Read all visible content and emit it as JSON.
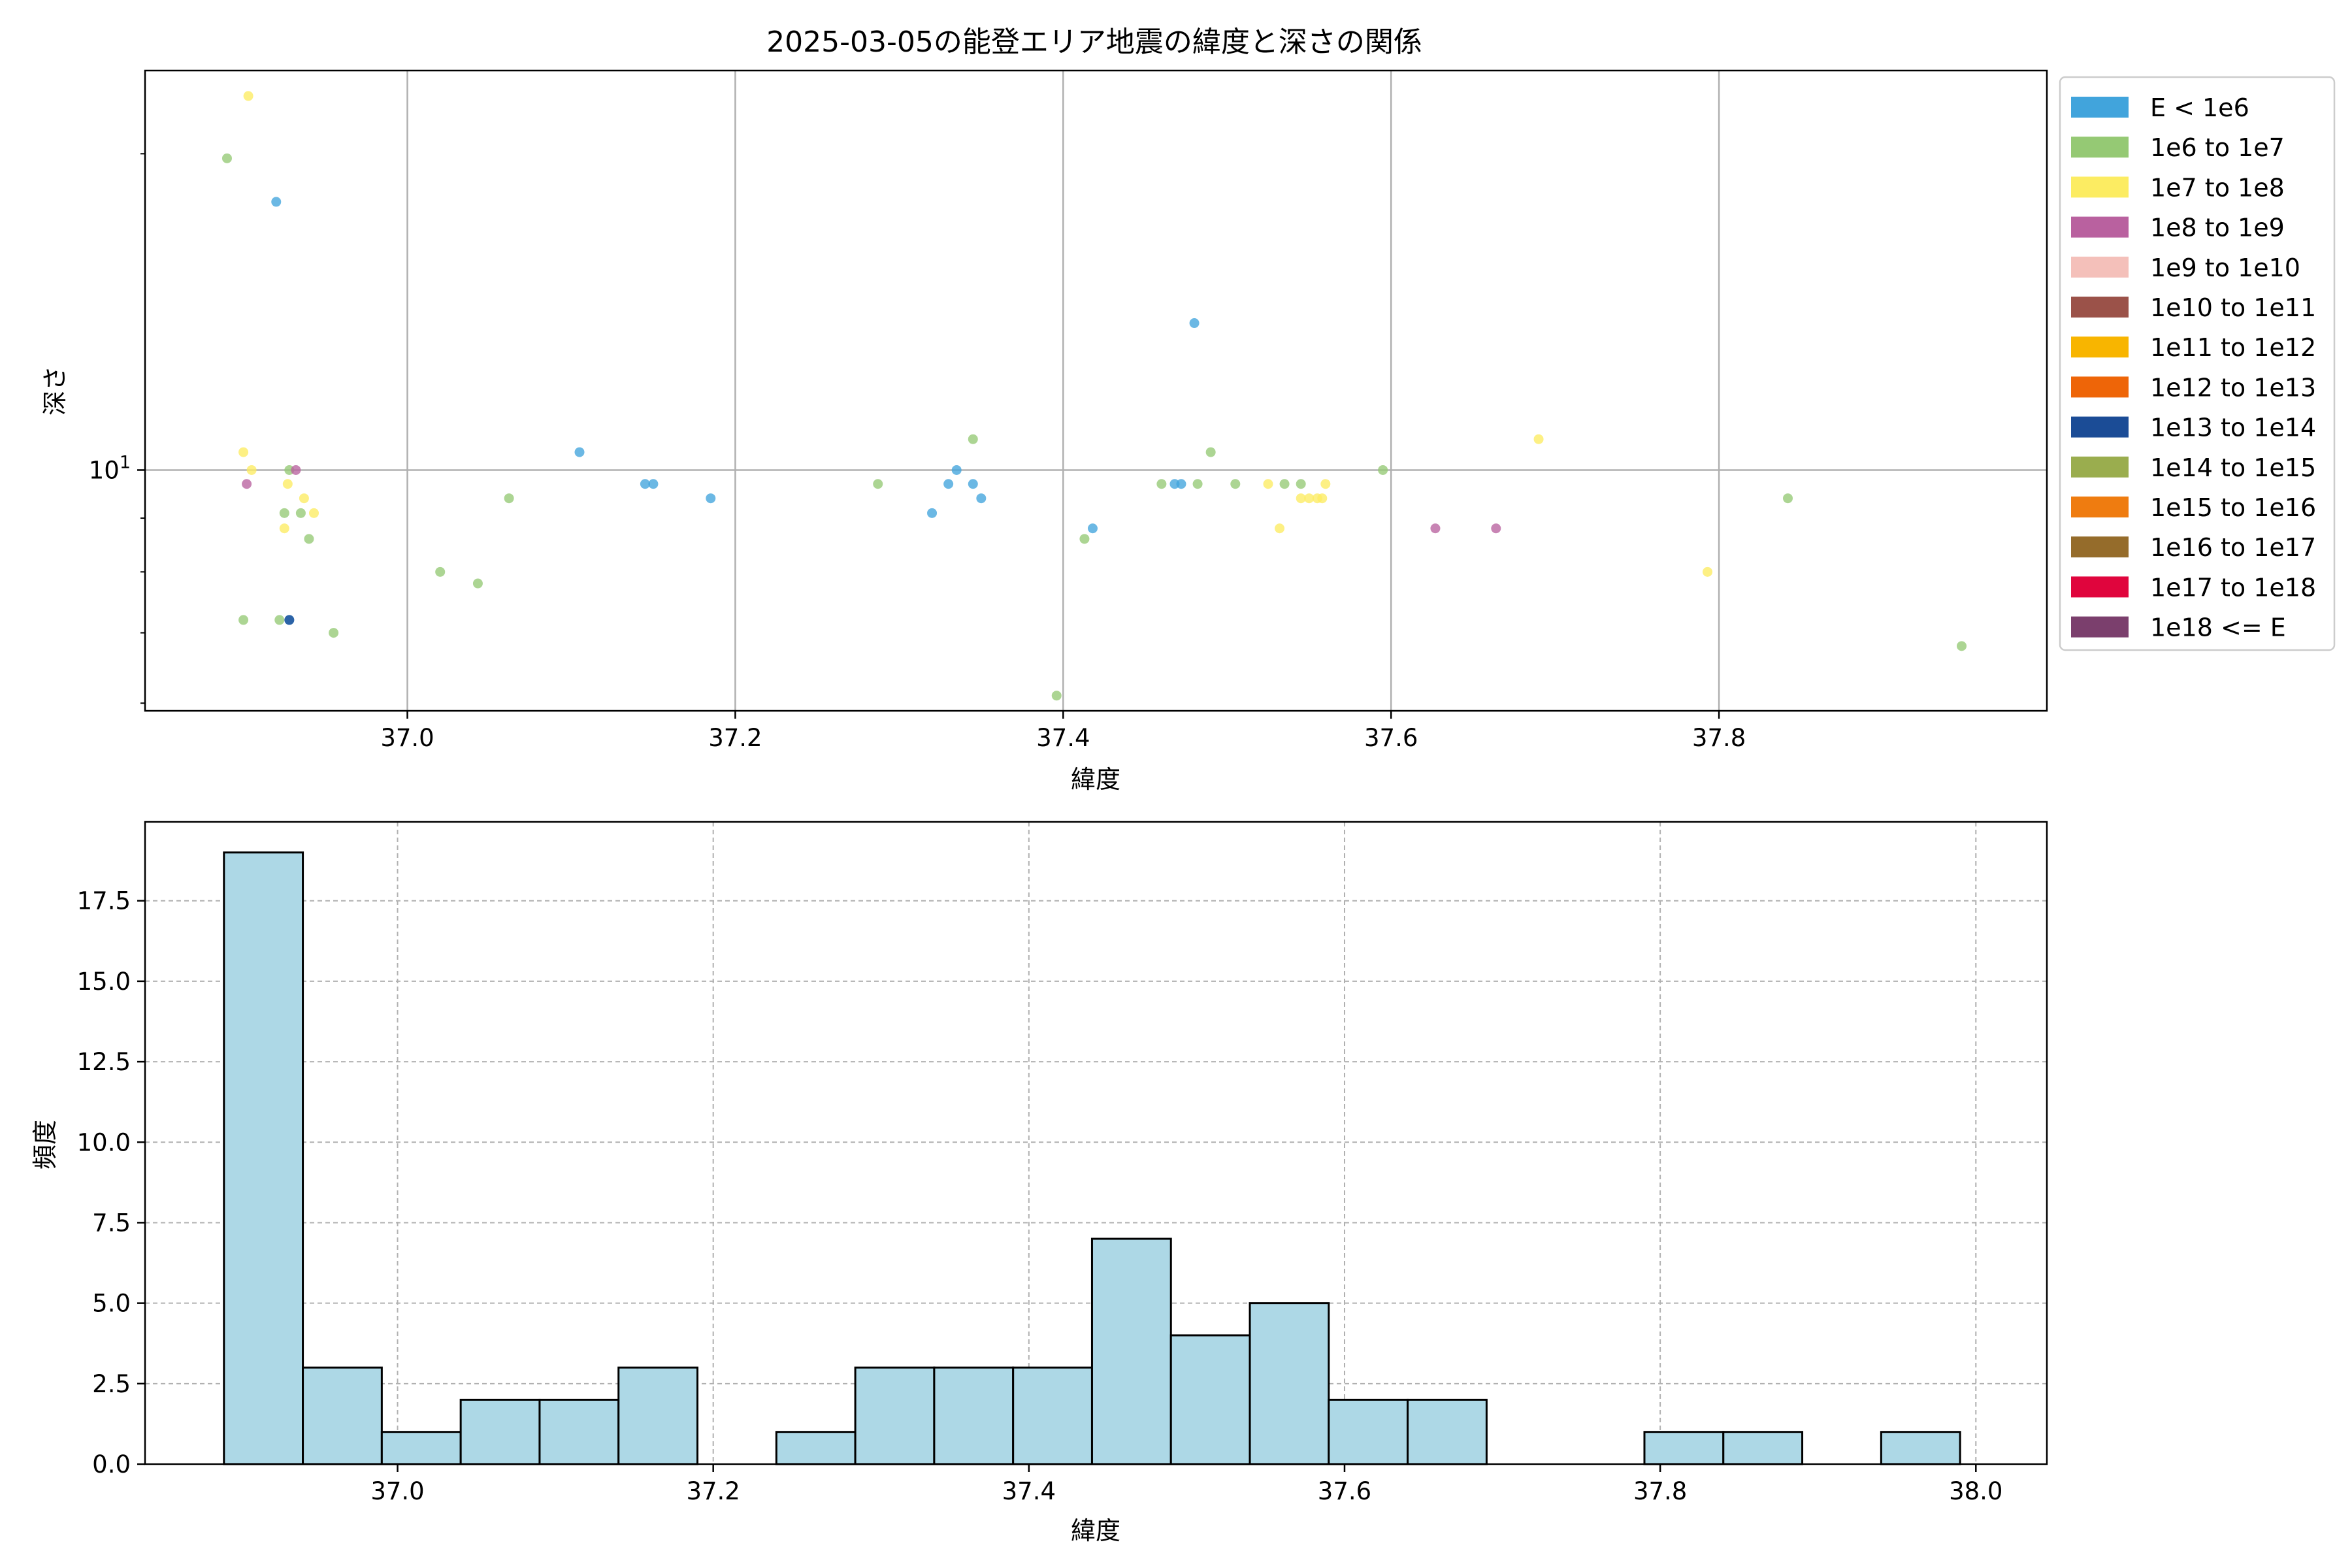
{
  "figure_title": "2025-03-05の能登エリア地震の緯度と深さの関係",
  "colors": {
    "grid": "#b0b0b0",
    "hist_fill": "#add8e6",
    "hist_edge": "#000000",
    "axis_edge": "#000000"
  },
  "chart_data": [
    {
      "type": "scatter",
      "title": "2025-03-05の能登エリア地震の緯度と深さの関係",
      "xlabel": "緯度",
      "ylabel": "深さ",
      "xlim": [
        36.84,
        38.0
      ],
      "ylim": [
        5.9,
        24.0
      ],
      "yscale": "log",
      "grid": true,
      "legend_position": "outside-right",
      "x_ticks": [
        37.0,
        37.2,
        37.4,
        37.6,
        37.8
      ],
      "x_tick_labels": [
        "37.0",
        "37.2",
        "37.4",
        "37.6",
        "37.8"
      ],
      "y_major_ticks": [
        10
      ],
      "y_major_tick_labels": [
        "10¹"
      ],
      "y_minor_ticks": [
        6,
        7,
        8,
        9,
        20
      ],
      "legend": [
        {
          "label": "E < 1e6",
          "color": "#41a4dc"
        },
        {
          "label": "1e6 to 1e7",
          "color": "#95c974"
        },
        {
          "label": "1e7 to 1e8",
          "color": "#fcec62"
        },
        {
          "label": "1e8 to 1e9",
          "color": "#b9619f"
        },
        {
          "label": "1e9 to 1e10",
          "color": "#f4c0ba"
        },
        {
          "label": "1e10 to 1e11",
          "color": "#9b5249"
        },
        {
          "label": "1e11 to 1e12",
          "color": "#f8b500"
        },
        {
          "label": "1e12 to 1e13",
          "color": "#ee6508"
        },
        {
          "label": "1e13 to 1e14",
          "color": "#1b4c96"
        },
        {
          "label": "1e14 to 1e15",
          "color": "#9aad4e"
        },
        {
          "label": "1e15 to 1e16",
          "color": "#ef7c10"
        },
        {
          "label": "1e16 to 1e17",
          "color": "#956c2b"
        },
        {
          "label": "1e17 to 1e18",
          "color": "#e0053d"
        },
        {
          "label": "1e18 <= E",
          "color": "#7b3f6d"
        }
      ],
      "series": [
        {
          "name": "E < 1e6",
          "color": "#41a4dc",
          "points": [
            [
              36.92,
              18.0
            ],
            [
              36.928,
              7.2
            ],
            [
              37.105,
              10.4
            ],
            [
              37.145,
              9.7
            ],
            [
              37.15,
              9.7
            ],
            [
              37.185,
              9.4
            ],
            [
              37.32,
              9.1
            ],
            [
              37.33,
              9.7
            ],
            [
              37.335,
              10.0
            ],
            [
              37.345,
              9.7
            ],
            [
              37.35,
              9.4
            ],
            [
              37.418,
              8.8
            ],
            [
              37.468,
              9.7
            ],
            [
              37.472,
              9.7
            ],
            [
              37.48,
              13.8
            ]
          ]
        },
        {
          "name": "1e6 to 1e7",
          "color": "#95c974",
          "points": [
            [
              36.89,
              19.8
            ],
            [
              36.9,
              7.2
            ],
            [
              36.922,
              7.2
            ],
            [
              36.925,
              9.1
            ],
            [
              36.928,
              10.0
            ],
            [
              36.935,
              9.1
            ],
            [
              36.94,
              8.6
            ],
            [
              36.955,
              7.0
            ],
            [
              37.02,
              8.0
            ],
            [
              37.043,
              7.8
            ],
            [
              37.062,
              9.4
            ],
            [
              37.287,
              9.7
            ],
            [
              37.345,
              10.7
            ],
            [
              37.413,
              8.6
            ],
            [
              37.46,
              9.7
            ],
            [
              37.482,
              9.7
            ],
            [
              37.49,
              10.4
            ],
            [
              37.505,
              9.7
            ],
            [
              37.535,
              9.7
            ],
            [
              37.545,
              9.7
            ],
            [
              37.595,
              10.0
            ],
            [
              37.842,
              9.4
            ],
            [
              37.948,
              6.8
            ],
            [
              37.396,
              6.1
            ]
          ]
        },
        {
          "name": "1e7 to 1e8",
          "color": "#fcec62",
          "points": [
            [
              36.903,
              22.7
            ],
            [
              36.9,
              10.4
            ],
            [
              36.905,
              10.0
            ],
            [
              36.925,
              8.8
            ],
            [
              36.927,
              9.7
            ],
            [
              36.937,
              9.4
            ],
            [
              36.943,
              9.1
            ],
            [
              37.525,
              9.7
            ],
            [
              37.532,
              8.8
            ],
            [
              37.545,
              9.4
            ],
            [
              37.55,
              9.4
            ],
            [
              37.555,
              9.4
            ],
            [
              37.56,
              9.7
            ],
            [
              37.558,
              9.4
            ],
            [
              37.69,
              10.7
            ],
            [
              37.793,
              8.0
            ]
          ]
        },
        {
          "name": "1e8 to 1e9",
          "color": "#b9619f",
          "points": [
            [
              36.902,
              9.7
            ],
            [
              36.932,
              10.0
            ],
            [
              37.627,
              8.8
            ],
            [
              37.664,
              8.8
            ]
          ]
        },
        {
          "name": "1e13 to 1e14",
          "color": "#1b4c96",
          "points": [
            [
              36.928,
              7.2
            ]
          ]
        }
      ]
    },
    {
      "type": "bar",
      "subtype": "histogram",
      "xlabel": "緯度",
      "ylabel": "頻度",
      "xlim": [
        36.84,
        38.045
      ],
      "ylim": [
        0,
        19.95
      ],
      "grid": true,
      "x_ticks": [
        37.0,
        37.2,
        37.4,
        37.6,
        37.8,
        38.0
      ],
      "x_tick_labels": [
        "37.0",
        "37.2",
        "37.4",
        "37.6",
        "37.8",
        "38.0"
      ],
      "y_ticks": [
        0,
        2.5,
        5,
        7.5,
        10,
        12.5,
        15,
        17.5
      ],
      "y_tick_labels": [
        "0.0",
        "2.5",
        "5.0",
        "7.5",
        "10.0",
        "12.5",
        "15.0",
        "17.5"
      ],
      "bin_edges": [
        36.89,
        36.94,
        36.99,
        37.04,
        37.09,
        37.14,
        37.19,
        37.24,
        37.29,
        37.34,
        37.39,
        37.44,
        37.49,
        37.54,
        37.59,
        37.64,
        37.69,
        37.74,
        37.79,
        37.84,
        37.89,
        37.94,
        37.99
      ],
      "values": [
        19,
        3,
        1,
        2,
        2,
        3,
        0,
        1,
        3,
        3,
        3,
        7,
        4,
        5,
        2,
        2,
        0,
        0,
        1,
        1,
        0,
        1
      ]
    }
  ]
}
